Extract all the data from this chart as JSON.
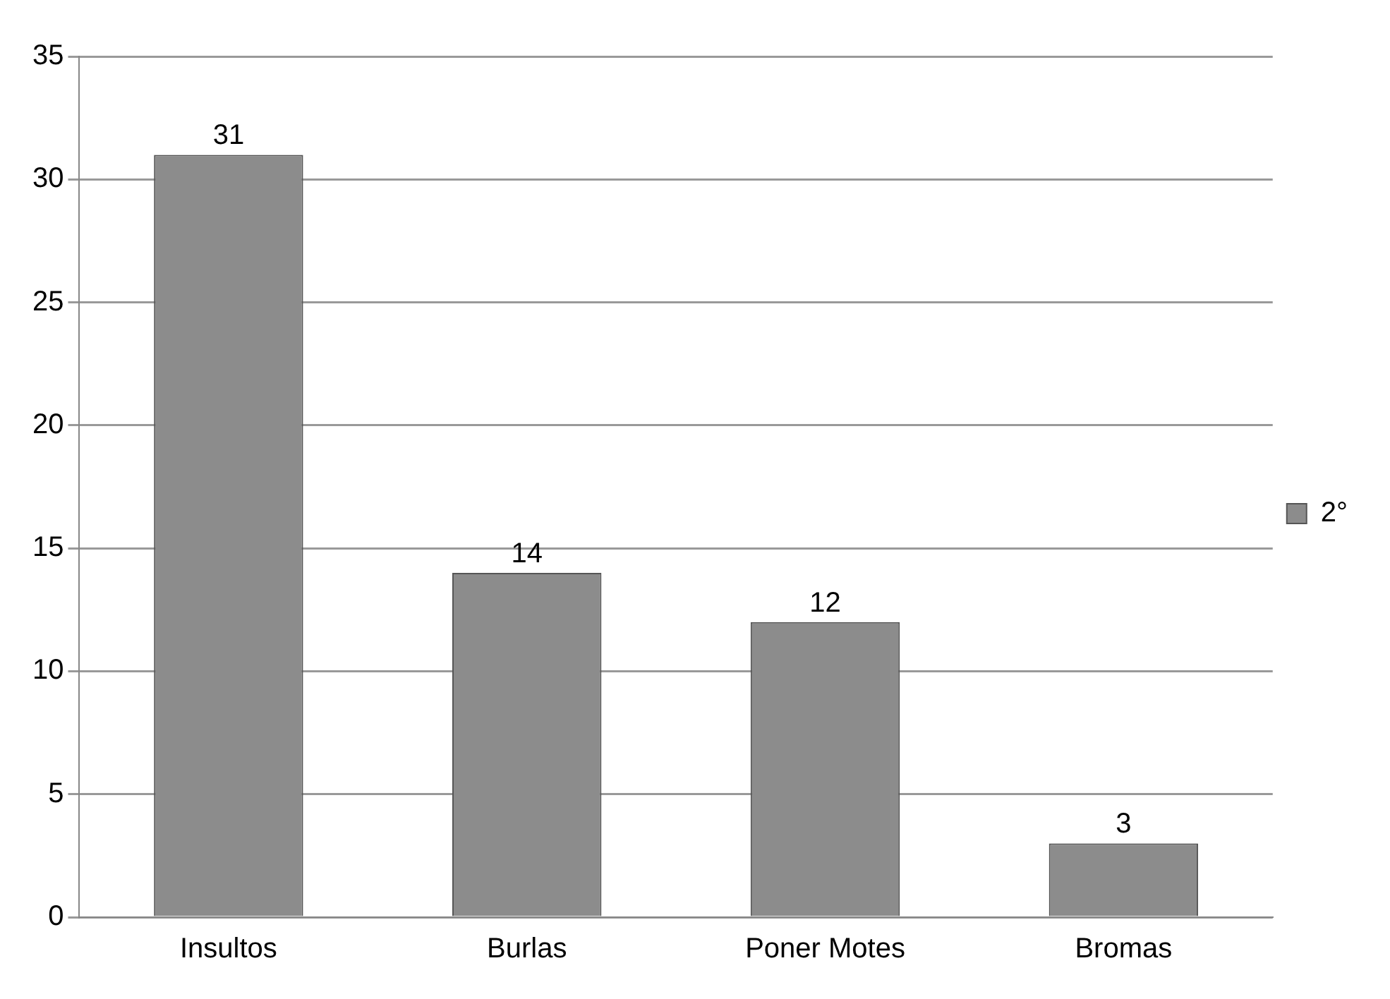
{
  "chart_data": {
    "type": "bar",
    "categories": [
      "Insultos",
      "Burlas",
      "Poner Motes",
      "Bromas"
    ],
    "series": [
      {
        "name": "2°",
        "color": "#8c8c8c",
        "values": [
          31,
          14,
          12,
          3
        ]
      }
    ],
    "ylim": [
      0,
      35
    ],
    "yticks": [
      0,
      5,
      10,
      15,
      20,
      25,
      30,
      35
    ],
    "grid": "y",
    "legend": "right",
    "data_labels": true
  }
}
